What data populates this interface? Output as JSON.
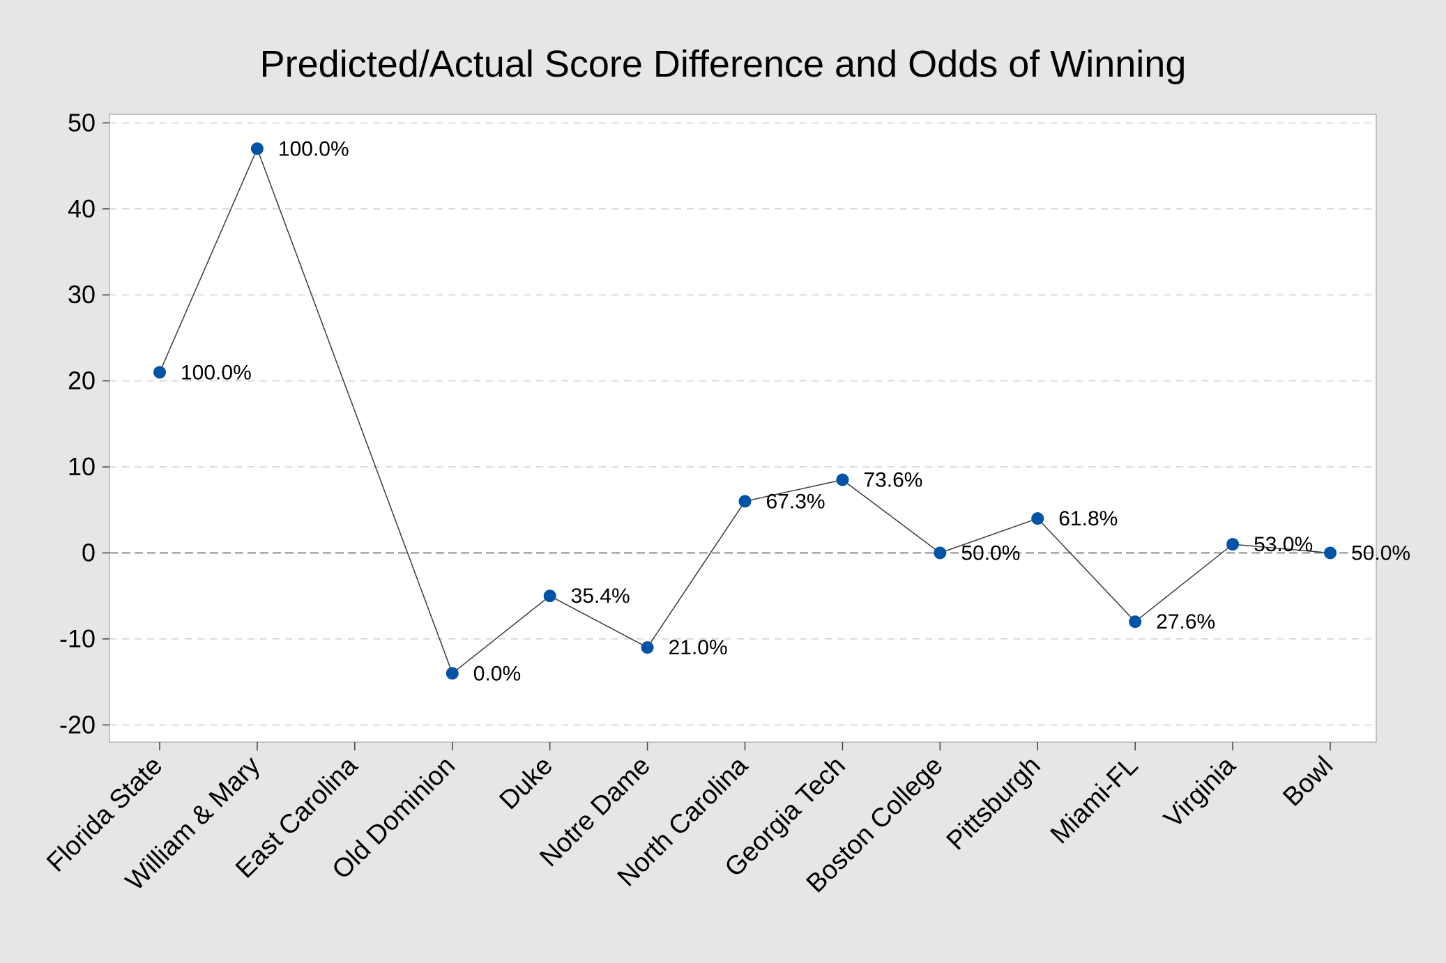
{
  "chart_data": {
    "type": "line",
    "title": "Predicted/Actual Score Difference and Odds of Winning",
    "xlabel": "",
    "ylabel": "",
    "categories": [
      "Florida State",
      "William & Mary",
      "East Carolina",
      "Old Dominion",
      "Duke",
      "Notre Dame",
      "North Carolina",
      "Georgia Tech",
      "Boston College",
      "Pittsburgh",
      "Miami-FL",
      "Virginia",
      "Bowl"
    ],
    "values": [
      21,
      47,
      null,
      -14,
      -5,
      -11,
      6,
      8.5,
      0,
      4,
      -8,
      1,
      0
    ],
    "data_labels": [
      "100.0%",
      "100.0%",
      "",
      "0.0%",
      "35.4%",
      "21.0%",
      "67.3%",
      "73.6%",
      "50.0%",
      "61.8%",
      "27.6%",
      "53.0%",
      "50.0%"
    ],
    "ylim": [
      -22,
      51
    ],
    "yticks": [
      -20,
      -10,
      0,
      10,
      20,
      30,
      40,
      50
    ],
    "ytick_labels": [
      "-20",
      "-10",
      "0",
      "10",
      "20",
      "30",
      "40",
      "50"
    ],
    "grid": true,
    "reference_line_y": 0,
    "marker_color": "#0054a6",
    "line_color": "#3a3a3a",
    "grid_color": "#d0d0d0",
    "plot_background": "#ffffff",
    "figure_background": "#e6e6e6"
  }
}
